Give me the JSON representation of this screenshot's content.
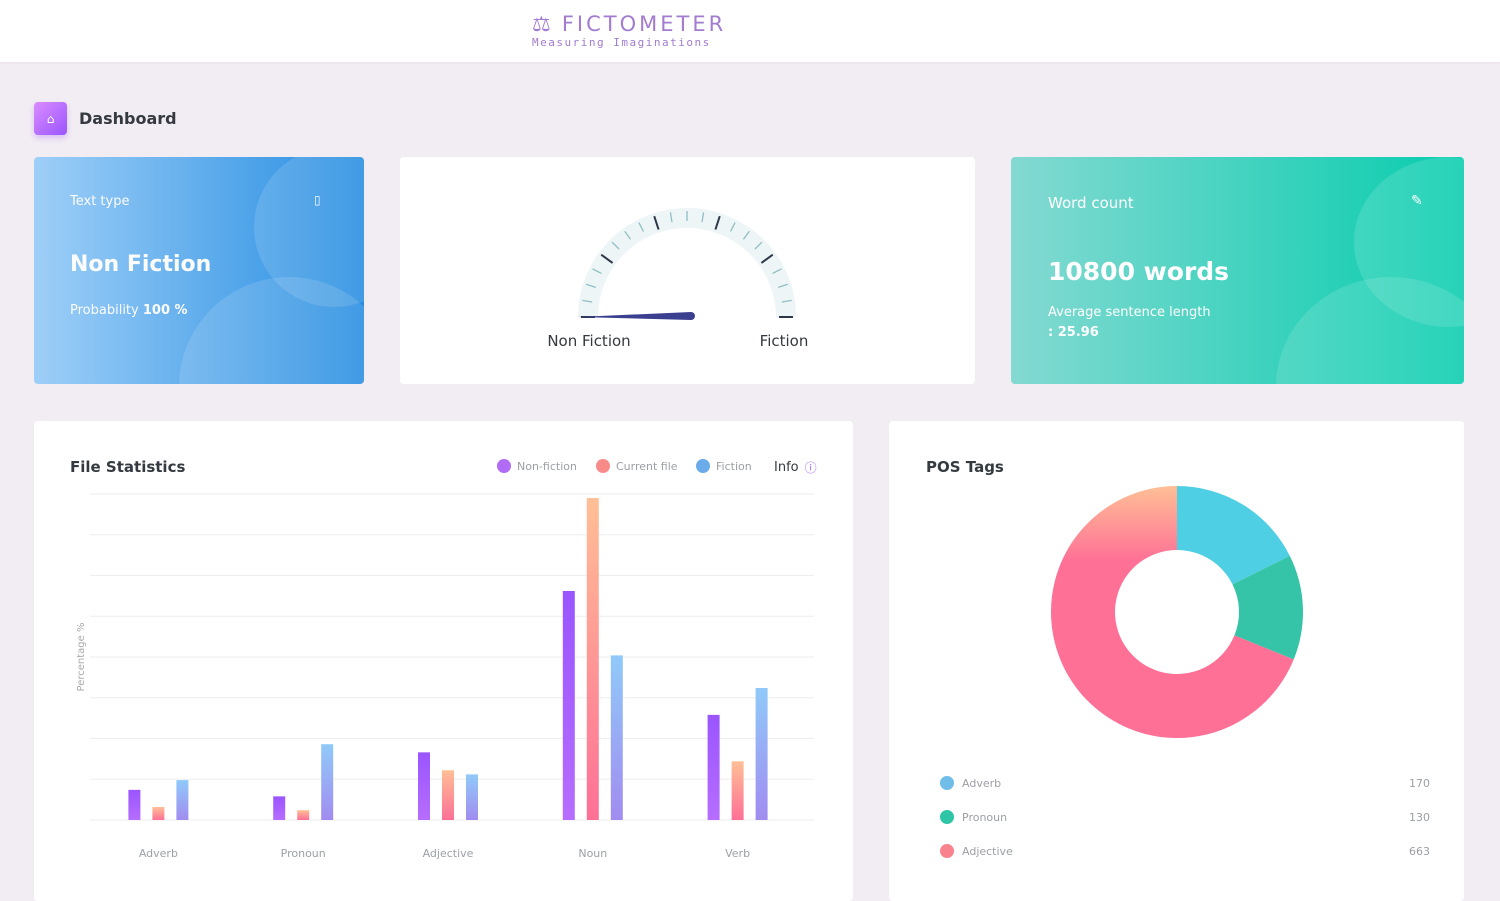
{
  "header": {
    "brand": "FICTOMETER",
    "tagline": "Measuring Imaginations",
    "logo_icon": "scales-icon"
  },
  "page": {
    "title": "Dashboard",
    "icon": "home-icon"
  },
  "text_type_card": {
    "label": "Text type",
    "value": "Non Fiction",
    "probability_label": "Probability",
    "probability_value": "100 %",
    "icon": "bookmark-icon"
  },
  "gauge": {
    "left_label": "Non Fiction",
    "right_label": "Fiction",
    "fiction_level": 0.0
  },
  "word_count_card": {
    "label": "Word count",
    "value": "10800 words",
    "avg_label": "Average sentence length",
    "avg_value": ": 25.96",
    "icon": "pencil-icon"
  },
  "file_statistics": {
    "title": "File Statistics",
    "info_label": "Info"
  },
  "pos_tags": {
    "title": "POS Tags",
    "items": [
      {
        "label": "Adverb",
        "value": "170",
        "color": "#4fc3e8"
      },
      {
        "label": "Pronoun",
        "value": "130",
        "color": "#2ec6a7"
      },
      {
        "label": "Adjective",
        "value": "663",
        "color": "#fe7096"
      }
    ]
  },
  "chart_data": [
    {
      "type": "bar",
      "title": "File Statistics",
      "ylabel": "Percentage %",
      "xlabel": "",
      "categories": [
        "Adverb",
        "Pronoun",
        "Adjective",
        "Noun",
        "Verb"
      ],
      "ylim": [
        0,
        40
      ],
      "grid": true,
      "legend": "top-right",
      "series": [
        {
          "name": "Non-fiction",
          "color": "#9a55ff",
          "values": [
            3.7,
            2.9,
            8.3,
            28.1,
            12.9
          ]
        },
        {
          "name": "Current file",
          "color": "#fe7096",
          "values": [
            1.6,
            1.2,
            6.1,
            39.5,
            7.2
          ]
        },
        {
          "name": "Fiction",
          "color": "#8fa4f0",
          "values": [
            4.9,
            9.3,
            5.6,
            20.2,
            16.2
          ]
        }
      ]
    },
    {
      "type": "pie",
      "title": "POS Tags",
      "categories": [
        "Adverb",
        "Pronoun",
        "Adjective"
      ],
      "values": [
        170,
        130,
        663
      ],
      "legend": "bottom"
    }
  ]
}
